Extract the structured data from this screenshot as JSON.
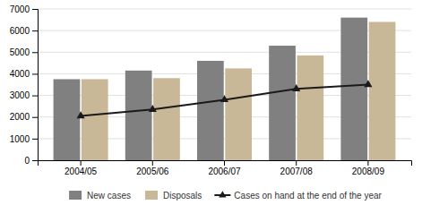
{
  "chart_data": {
    "type": "bar",
    "categories": [
      "2004/05",
      "2005/06",
      "2006/07",
      "2007/08",
      "2008/09"
    ],
    "series": [
      {
        "name": "New cases",
        "type": "bar",
        "color": "#808080",
        "values": [
          3750,
          4150,
          4600,
          5300,
          6600
        ]
      },
      {
        "name": "Disposals",
        "type": "bar",
        "color": "#c8b898",
        "values": [
          3750,
          3800,
          4250,
          4850,
          6400
        ]
      },
      {
        "name": "Cases on hand at the end of the year",
        "type": "line",
        "color": "#1a1a1a",
        "marker": "triangle",
        "line_style": "solid",
        "values": [
          2050,
          2350,
          2800,
          3300,
          3500
        ]
      }
    ],
    "ylim": [
      0,
      7000
    ],
    "yticks": [
      0,
      1000,
      2000,
      3000,
      4000,
      5000,
      6000,
      7000
    ],
    "grid": true,
    "legend": "bottom"
  }
}
